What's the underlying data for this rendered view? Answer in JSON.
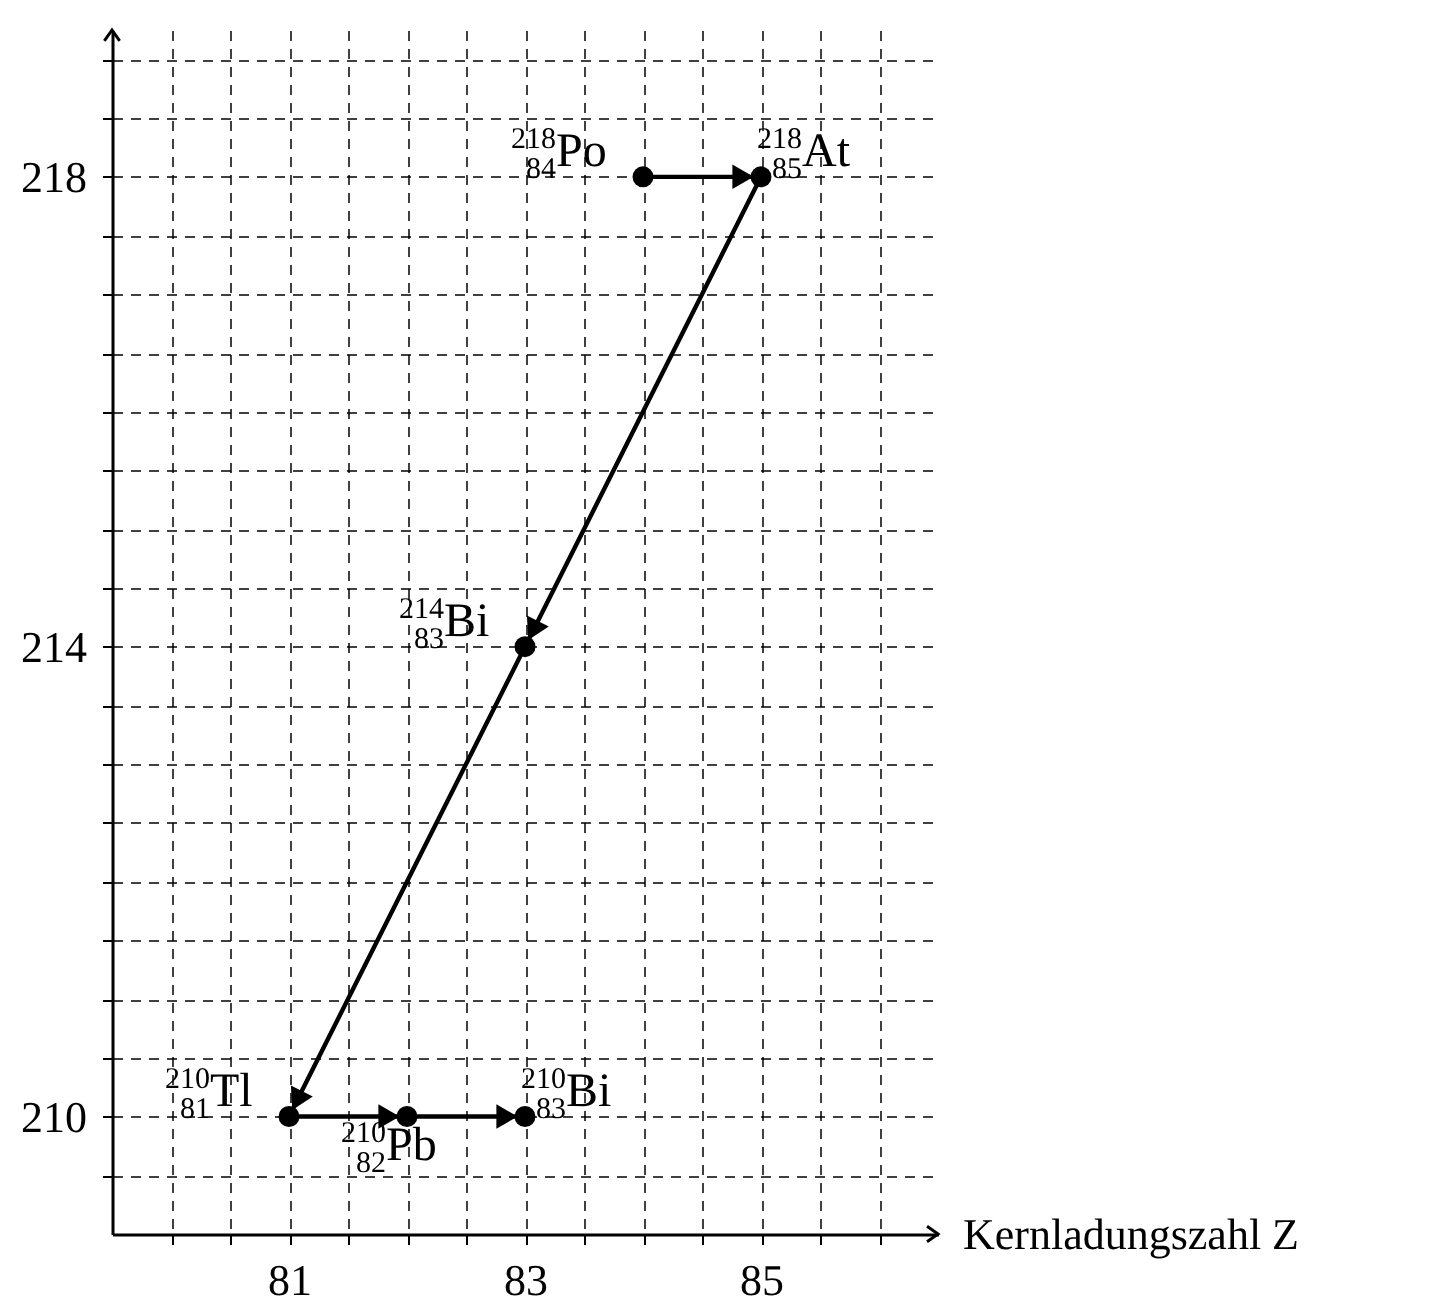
{
  "chart_data": {
    "type": "line",
    "xlabel": "Kernladungszahl Z",
    "x": [
      84,
      85,
      83,
      81,
      82,
      83
    ],
    "series": [
      {
        "color": "#000000",
        "values": [
          218,
          218,
          214,
          210,
          210,
          210
        ]
      }
    ],
    "xlim": [
      79.5,
      86.5
    ],
    "ylim": [
      209,
      219.25
    ],
    "xticks": [
      {
        "value": 80,
        "label": null
      },
      {
        "value": 80.5,
        "label": null
      },
      81,
      {
        "value": 81.5,
        "label": null
      },
      {
        "value": 82,
        "label": null
      },
      {
        "value": 82.5,
        "label": null
      },
      83,
      {
        "value": 83.5,
        "label": null
      },
      {
        "value": 84,
        "label": null
      },
      {
        "value": 84.5,
        "label": null
      },
      85,
      {
        "value": 85.5,
        "label": null
      },
      {
        "value": 86,
        "label": null
      }
    ],
    "yticks": [
      {
        "value": 209.5,
        "label": null
      },
      210,
      {
        "value": 210.5,
        "label": null
      },
      {
        "value": 211,
        "label": null
      },
      {
        "value": 211.5,
        "label": null
      },
      {
        "value": 212,
        "label": null
      },
      {
        "value": 212.5,
        "label": null
      },
      {
        "value": 213,
        "label": null
      },
      {
        "value": 213.5,
        "label": null
      },
      214,
      {
        "value": 214.5,
        "label": null
      },
      {
        "value": 215,
        "label": null
      },
      {
        "value": 215.5,
        "label": null
      },
      {
        "value": 216,
        "label": null
      },
      {
        "value": 216.5,
        "label": null
      },
      {
        "value": 217,
        "label": null
      },
      {
        "value": 217.5,
        "label": null
      },
      218,
      {
        "value": 218.5,
        "label": null
      },
      {
        "value": 219,
        "label": null
      }
    ],
    "grid": true,
    "marker": "circle",
    "line_style": "solid",
    "annotations": [
      {
        "text": "$^{218}$$_{84}$Po",
        "x": 84,
        "y": 218
      },
      {
        "text": "$^{218}$$_{85}$At",
        "x": 85,
        "y": 218
      },
      {
        "text": "$^{214}$$_{83}$Bi",
        "x": 83,
        "y": 214
      },
      {
        "text": "$^{210}$$_{81}$Tl",
        "x": 81,
        "y": 210
      },
      {
        "text": "$^{210}$$_{82}$Pb",
        "x": 82,
        "y": 210
      },
      {
        "text": "$^{210}$$_{83}$Bi",
        "x": 83,
        "y": 210
      }
    ]
  }
}
